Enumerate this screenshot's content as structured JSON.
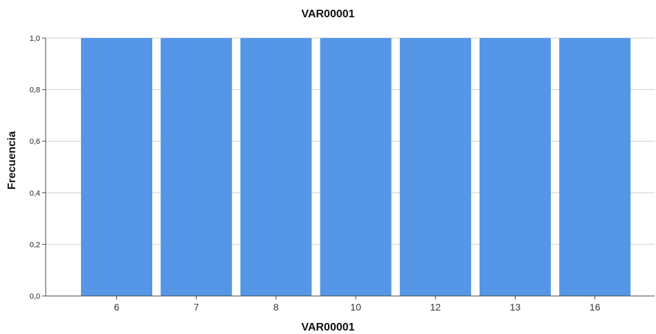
{
  "chart_data": {
    "type": "bar",
    "title": "VAR00001",
    "xlabel": "VAR00001",
    "ylabel": "Frecuencia",
    "categories": [
      "6",
      "7",
      "8",
      "10",
      "12",
      "13",
      "16"
    ],
    "values": [
      1,
      1,
      1,
      1,
      1,
      1,
      1
    ],
    "ylim": [
      0,
      1
    ],
    "yticks": [
      "0,0",
      "0,2",
      "0,4",
      "0,6",
      "0,8",
      "1,0"
    ],
    "grid": true,
    "bar_color": "#5596e6",
    "grid_color": "#d0d0d0"
  }
}
